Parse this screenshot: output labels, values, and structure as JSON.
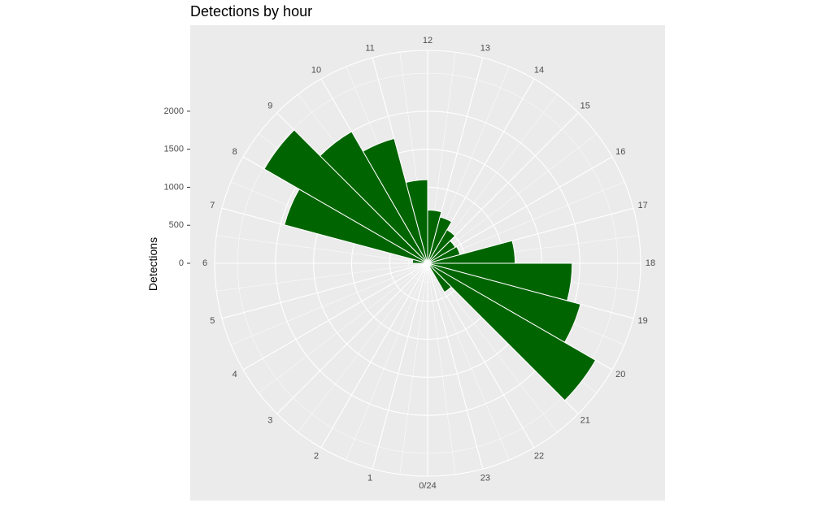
{
  "chart_data": {
    "type": "bar",
    "coord": "polar",
    "title": "Detections by hour",
    "ylabel": "Detections",
    "xlabel": "",
    "hour_labels": [
      "0/24",
      "1",
      "2",
      "3",
      "4",
      "5",
      "6",
      "7",
      "8",
      "9",
      "10",
      "11",
      "12",
      "13",
      "14",
      "15",
      "16",
      "17",
      "18",
      "19",
      "20",
      "21",
      "22",
      "23"
    ],
    "y_ticks": [
      "0",
      "500",
      "1000",
      "1500",
      "2000"
    ],
    "y_tick_values": [
      0,
      500,
      1000,
      1500,
      2000
    ],
    "ylim": [
      0,
      2800
    ],
    "bar_color": "#006400",
    "panel_color": "#ebebeb",
    "grid_color": "#ffffff",
    "series": [
      {
        "hours": [
          0,
          1,
          2,
          3,
          4,
          5,
          6,
          7,
          8,
          9,
          10,
          11,
          12,
          13,
          14,
          15,
          16,
          17,
          18,
          19,
          20,
          21,
          22,
          23
        ],
        "values": [
          0,
          0,
          0,
          0,
          0,
          0,
          200,
          1950,
          2480,
          2000,
          1700,
          1100,
          700,
          630,
          510,
          420,
          440,
          1150,
          1900,
          2080,
          2550,
          440,
          0,
          0
        ]
      }
    ]
  }
}
